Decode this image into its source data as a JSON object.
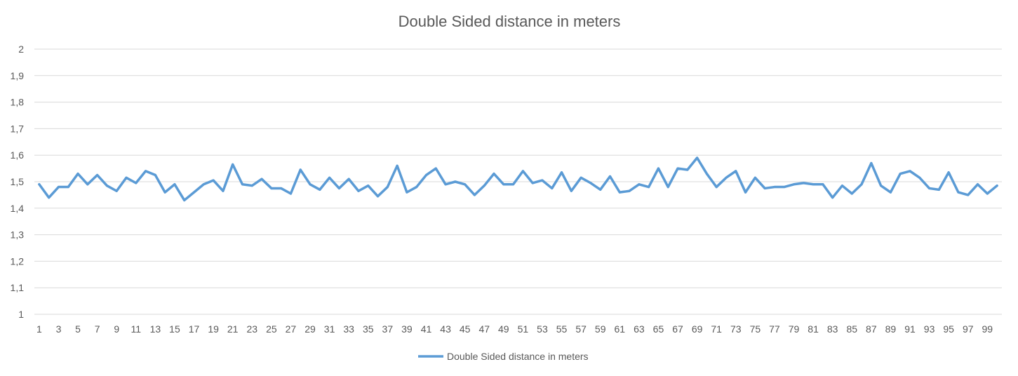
{
  "chart_data": {
    "type": "line",
    "title": "Double Sided distance in meters",
    "xlabel": "",
    "ylabel": "",
    "ylim": [
      1,
      2
    ],
    "y_ticks": [
      "1",
      "1,1",
      "1,2",
      "1,3",
      "1,4",
      "1,5",
      "1,6",
      "1,7",
      "1,8",
      "1,9",
      "2"
    ],
    "x_tick_labels": [
      "1",
      "3",
      "5",
      "7",
      "9",
      "11",
      "13",
      "15",
      "17",
      "19",
      "21",
      "23",
      "25",
      "27",
      "29",
      "31",
      "33",
      "35",
      "37",
      "39",
      "41",
      "43",
      "45",
      "47",
      "49",
      "51",
      "53",
      "55",
      "57",
      "59",
      "61",
      "63",
      "65",
      "67",
      "69",
      "71",
      "73",
      "75",
      "77",
      "79",
      "81",
      "83",
      "85",
      "87",
      "89",
      "91",
      "93",
      "95",
      "97",
      "99"
    ],
    "grid": "horizontal",
    "legend_position": "bottom",
    "colors": {
      "series": "#5b9bd5",
      "grid": "#d9d9d9",
      "text": "#595959"
    },
    "x": [
      1,
      2,
      3,
      4,
      5,
      6,
      7,
      8,
      9,
      10,
      11,
      12,
      13,
      14,
      15,
      16,
      17,
      18,
      19,
      20,
      21,
      22,
      23,
      24,
      25,
      26,
      27,
      28,
      29,
      30,
      31,
      32,
      33,
      34,
      35,
      36,
      37,
      38,
      39,
      40,
      41,
      42,
      43,
      44,
      45,
      46,
      47,
      48,
      49,
      50,
      51,
      52,
      53,
      54,
      55,
      56,
      57,
      58,
      59,
      60,
      61,
      62,
      63,
      64,
      65,
      66,
      67,
      68,
      69,
      70,
      71,
      72,
      73,
      74,
      75,
      76,
      77,
      78,
      79,
      80,
      81,
      82,
      83,
      84,
      85,
      86,
      87,
      88,
      89,
      90,
      91,
      92,
      93,
      94,
      95,
      96,
      97,
      98,
      99,
      100
    ],
    "series": [
      {
        "name": "Double Sided distance in meters",
        "values": [
          1.49,
          1.44,
          1.48,
          1.48,
          1.53,
          1.49,
          1.525,
          1.485,
          1.465,
          1.515,
          1.495,
          1.54,
          1.525,
          1.46,
          1.49,
          1.43,
          1.46,
          1.49,
          1.505,
          1.465,
          1.565,
          1.49,
          1.485,
          1.51,
          1.475,
          1.475,
          1.455,
          1.545,
          1.49,
          1.47,
          1.515,
          1.475,
          1.51,
          1.465,
          1.485,
          1.445,
          1.48,
          1.56,
          1.46,
          1.48,
          1.525,
          1.55,
          1.49,
          1.5,
          1.49,
          1.45,
          1.485,
          1.53,
          1.49,
          1.49,
          1.54,
          1.495,
          1.505,
          1.475,
          1.535,
          1.465,
          1.515,
          1.495,
          1.47,
          1.52,
          1.46,
          1.465,
          1.49,
          1.48,
          1.55,
          1.48,
          1.55,
          1.545,
          1.59,
          1.53,
          1.48,
          1.515,
          1.54,
          1.46,
          1.515,
          1.475,
          1.48,
          1.48,
          1.49,
          1.495,
          1.49,
          1.49,
          1.44,
          1.485,
          1.455,
          1.49,
          1.57,
          1.485,
          1.46,
          1.53,
          1.54,
          1.515,
          1.475,
          1.47,
          1.535,
          1.46,
          1.45,
          1.49,
          1.455,
          1.485
        ]
      }
    ]
  }
}
